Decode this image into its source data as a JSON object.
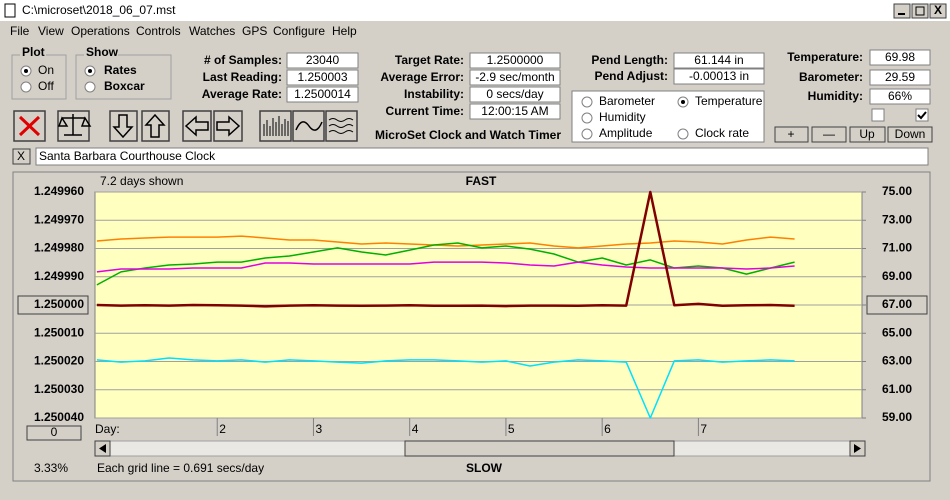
{
  "window": {
    "title": "C:\\microset\\2018_06_07.mst",
    "close": "X"
  },
  "menu": [
    "File",
    "View",
    "Operations",
    "Controls",
    "Watches",
    "GPS",
    "Configure",
    "Help"
  ],
  "plot_group": {
    "title": "Plot",
    "options": [
      "On",
      "Off"
    ]
  },
  "show_group": {
    "title": "Show",
    "options": [
      "Rates",
      "Boxcar"
    ]
  },
  "readouts": [
    {
      "label": "# of Samples:",
      "value": "23040"
    },
    {
      "label": "Last Reading:",
      "value": "1.250003"
    },
    {
      "label": "Average Rate:",
      "value": "1.2500014"
    },
    {
      "label": "Target Rate:",
      "value": "1.2500000"
    },
    {
      "label": "Average Error:",
      "value": "-2.9 sec/month"
    },
    {
      "label": "Instability:",
      "value": "0 secs/day"
    },
    {
      "label": "Current Time:",
      "value": "12:00:15 AM"
    },
    {
      "label": "Pend Length:",
      "value": "61.144 in"
    },
    {
      "label": "Pend Adjust:",
      "value": "-0.00013 in"
    },
    {
      "label": "Temperature:",
      "value": "69.98"
    },
    {
      "label": "Barometer:",
      "value": "29.59"
    },
    {
      "label": "Humidity:",
      "value": "66%"
    }
  ],
  "app_title": "MicroSet Clock and Watch Timer",
  "buttons": [
    "+",
    "—",
    "Up",
    "Down"
  ],
  "clear_button": "X",
  "clock_name": "Santa Barbara Courthouse Clock",
  "chart_data": {
    "type": "line",
    "title": "FAST",
    "bottom_title": "SLOW",
    "days_shown": "7.2 days shown",
    "grid_note": "Each grid line = 0.691 secs/day",
    "zoom": "3.33%",
    "offset_button": "0",
    "x_label": "Day:",
    "grid": true,
    "x": [
      0.75,
      1.0,
      1.25,
      1.5,
      1.75,
      2.0,
      2.25,
      2.5,
      2.75,
      3.0,
      3.25,
      3.5,
      3.75,
      4.0,
      4.25,
      4.5,
      4.75,
      5.0,
      5.25,
      5.5,
      5.75,
      6.0,
      6.25,
      6.5,
      6.75,
      7.0,
      7.25,
      7.5,
      7.75,
      8.0
    ],
    "xlim": [
      0.73,
      8.7
    ],
    "xticks": [
      2,
      3,
      4,
      5,
      6,
      7
    ],
    "ylim": [
      1.25004,
      1.24996
    ],
    "yticks": [
      {
        "value": 1.24996,
        "label": "1.249960"
      },
      {
        "value": 1.24997,
        "label": "1.249970"
      },
      {
        "value": 1.24998,
        "label": "1.249980"
      },
      {
        "value": 1.24999,
        "label": "1.249990"
      },
      {
        "value": 1.25,
        "label": "1.250000"
      },
      {
        "value": 1.25001,
        "label": "1.250010"
      },
      {
        "value": 1.25002,
        "label": "1.250020"
      },
      {
        "value": 1.25003,
        "label": "1.250030"
      },
      {
        "value": 1.25004,
        "label": "1.250040"
      }
    ],
    "y2lim": [
      59,
      75
    ],
    "y2ticks": [
      {
        "value": 75,
        "label": "75.00"
      },
      {
        "value": 73,
        "label": "73.00"
      },
      {
        "value": 71,
        "label": "71.00"
      },
      {
        "value": 69,
        "label": "69.00"
      },
      {
        "value": 67,
        "label": "67.00"
      },
      {
        "value": 65,
        "label": "65.00"
      },
      {
        "value": 63,
        "label": "63.00"
      },
      {
        "value": 61,
        "label": "61.00"
      },
      {
        "value": 59,
        "label": "59.00"
      }
    ],
    "series": [
      {
        "name": "Barometer",
        "color": "#ff8000",
        "axis": "y2",
        "values": [
          71.53,
          71.67,
          71.74,
          71.81,
          71.81,
          71.81,
          71.88,
          71.74,
          71.6,
          71.6,
          71.46,
          71.32,
          71.39,
          71.32,
          71.25,
          71.18,
          71.25,
          71.32,
          71.39,
          71.18,
          71.04,
          71.18,
          71.32,
          71.39,
          71.53,
          71.46,
          71.32,
          71.6,
          71.81,
          71.67
        ]
      },
      {
        "name": "Temperature",
        "color": "#00b000",
        "axis": "y2",
        "values": [
          68.42,
          69.34,
          69.62,
          69.83,
          69.9,
          70.04,
          70.04,
          70.33,
          70.47,
          70.75,
          71.04,
          70.75,
          70.54,
          70.89,
          71.25,
          71.39,
          71.04,
          71.18,
          70.96,
          70.61,
          70.04,
          70.33,
          69.83,
          70.19,
          69.62,
          69.76,
          69.62,
          69.19,
          69.62,
          70.04
        ]
      },
      {
        "name": "Humidity",
        "color": "#e000e0",
        "axis": "y2",
        "values": [
          69.34,
          69.55,
          69.55,
          69.55,
          69.62,
          69.62,
          69.62,
          69.97,
          69.97,
          69.9,
          69.9,
          69.9,
          69.9,
          69.9,
          70.04,
          70.04,
          70.04,
          69.97,
          69.83,
          69.76,
          70.04,
          69.83,
          69.69,
          69.62,
          69.62,
          69.62,
          69.62,
          69.55,
          69.62,
          69.76
        ]
      },
      {
        "name": "Amplitude",
        "color": "#00e0ff",
        "axis": "y2",
        "values": [
          63.11,
          62.96,
          63.04,
          63.25,
          63.11,
          63.04,
          63.11,
          62.96,
          63.11,
          63.04,
          62.96,
          62.89,
          63.04,
          63.11,
          63.11,
          63.04,
          62.96,
          63.04,
          62.68,
          62.96,
          63.11,
          63.04,
          62.96,
          59,
          63.04,
          63.11,
          62.96,
          63.04,
          63.11,
          63.04
        ]
      },
      {
        "name": "Clock rate",
        "color": "#800000",
        "axis": "y",
        "values": [
          1.25,
          1.2500002,
          1.2500001,
          1.2500002,
          1.25,
          1.2500001,
          1.2500002,
          1.2500005,
          1.2500002,
          1.2500001,
          1.2500002,
          1.2500003,
          1.2500002,
          1.2500001,
          1.2500003,
          1.2500003,
          1.2500002,
          1.2500004,
          1.2500002,
          1.2500002,
          1.2500003,
          1.2500001,
          1.2500002,
          1.24996,
          1.2500001,
          1.2499996,
          1.2500003,
          1.2500001,
          1.25,
          1.2500003
        ]
      }
    ]
  }
}
